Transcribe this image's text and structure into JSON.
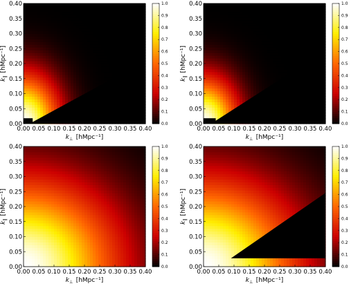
{
  "colorbar": {
    "ticks": [
      "0.0",
      "0.1",
      "0.2",
      "0.3",
      "0.4",
      "0.5",
      "0.6",
      "0.7",
      "0.8",
      "0.9",
      "1.0"
    ],
    "colormap": "hot",
    "colors": [
      "#000000",
      "#cc0000",
      "#ff6600",
      "#ffee00",
      "#ffffff"
    ]
  },
  "chart_data": [
    {
      "type": "heatmap",
      "panel": "top-left",
      "xlabel_main": "k",
      "xlabel_sub": "⊥",
      "xlabel_unit": "[hMpc⁻¹]",
      "ylabel_main": "k",
      "ylabel_sub": "∥",
      "ylabel_unit": "[hMpc⁻¹]",
      "xlim": [
        0.0,
        0.4
      ],
      "ylim": [
        0.0,
        0.4
      ],
      "xticks": [
        "0.00",
        "0.05",
        "0.10",
        "0.15",
        "0.20",
        "0.25",
        "0.30",
        "0.35",
        "0.40"
      ],
      "yticks": [
        "0.00",
        "0.05",
        "0.10",
        "0.15",
        "0.20",
        "0.25",
        "0.30",
        "0.35",
        "0.40"
      ],
      "clim": [
        0.0,
        1.0
      ],
      "decay_scale": [
        0.115,
        0.16
      ],
      "masked_wedge": {
        "k_perp_start": 0.02,
        "slope": 0.55
      },
      "masked_low_kpar": {
        "k_par_max": 0.018,
        "k_perp_min": 0.0,
        "k_perp_max": 0.03
      }
    },
    {
      "type": "heatmap",
      "panel": "top-right",
      "xlabel_main": "k",
      "xlabel_sub": "⊥",
      "xlabel_unit": "[hMpc⁻¹]",
      "ylabel_main": "k",
      "ylabel_sub": "∥",
      "ylabel_unit": "[hMpc⁻¹]",
      "xlim": [
        0.0,
        0.4
      ],
      "ylim": [
        0.0,
        0.4
      ],
      "xticks": [
        "0.00",
        "0.05",
        "0.10",
        "0.15",
        "0.20",
        "0.25",
        "0.30",
        "0.35",
        "0.40"
      ],
      "yticks": [
        "0.00",
        "0.05",
        "0.10",
        "0.15",
        "0.20",
        "0.25",
        "0.30",
        "0.35",
        "0.40"
      ],
      "clim": [
        0.0,
        1.0
      ],
      "decay_scale": [
        0.11,
        0.15
      ],
      "masked_wedge": {
        "k_perp_start": 0.025,
        "slope": 0.65
      },
      "masked_low_kpar": {
        "k_par_max": 0.018,
        "k_perp_min": 0.0,
        "k_perp_max": 0.04
      }
    },
    {
      "type": "heatmap",
      "panel": "bottom-left",
      "xlabel_main": "k",
      "xlabel_sub": "⊥",
      "xlabel_unit": "[hMpc⁻¹]",
      "ylabel_main": "k",
      "ylabel_sub": "∥",
      "ylabel_unit": "[hMpc⁻¹]",
      "xlim": [
        0.0,
        0.4
      ],
      "ylim": [
        0.0,
        0.4
      ],
      "xticks": [
        "0.00",
        "0.05",
        "0.10",
        "0.15",
        "0.20",
        "0.25",
        "0.30",
        "0.35",
        "0.40"
      ],
      "yticks": [
        "0.00",
        "0.05",
        "0.10",
        "0.15",
        "0.20",
        "0.25",
        "0.30",
        "0.35",
        "0.40"
      ],
      "clim": [
        0.0,
        1.0
      ],
      "decay_scale": [
        0.3,
        0.28
      ],
      "masked_wedge": null,
      "masked_low_kpar": null
    },
    {
      "type": "heatmap",
      "panel": "bottom-right",
      "xlabel_main": "k",
      "xlabel_sub": "⊥",
      "xlabel_unit": "[hMpc⁻¹]",
      "ylabel_main": "k",
      "ylabel_sub": "∥",
      "ylabel_unit": "[hMpc⁻¹]",
      "xlim": [
        0.0,
        0.4
      ],
      "ylim": [
        0.0,
        0.4
      ],
      "xticks": [
        "0.00",
        "0.05",
        "0.10",
        "0.15",
        "0.20",
        "0.25",
        "0.30",
        "0.35",
        "0.40"
      ],
      "yticks": [
        "0.00",
        "0.05",
        "0.10",
        "0.15",
        "0.20",
        "0.25",
        "0.30",
        "0.35",
        "0.40"
      ],
      "clim": [
        0.0,
        1.0
      ],
      "decay_scale": [
        0.3,
        0.28
      ],
      "masked_wedge": {
        "k_perp_start": 0.05,
        "slope": 0.7,
        "k_par_min": 0.028
      },
      "masked_low_kpar": null
    }
  ]
}
